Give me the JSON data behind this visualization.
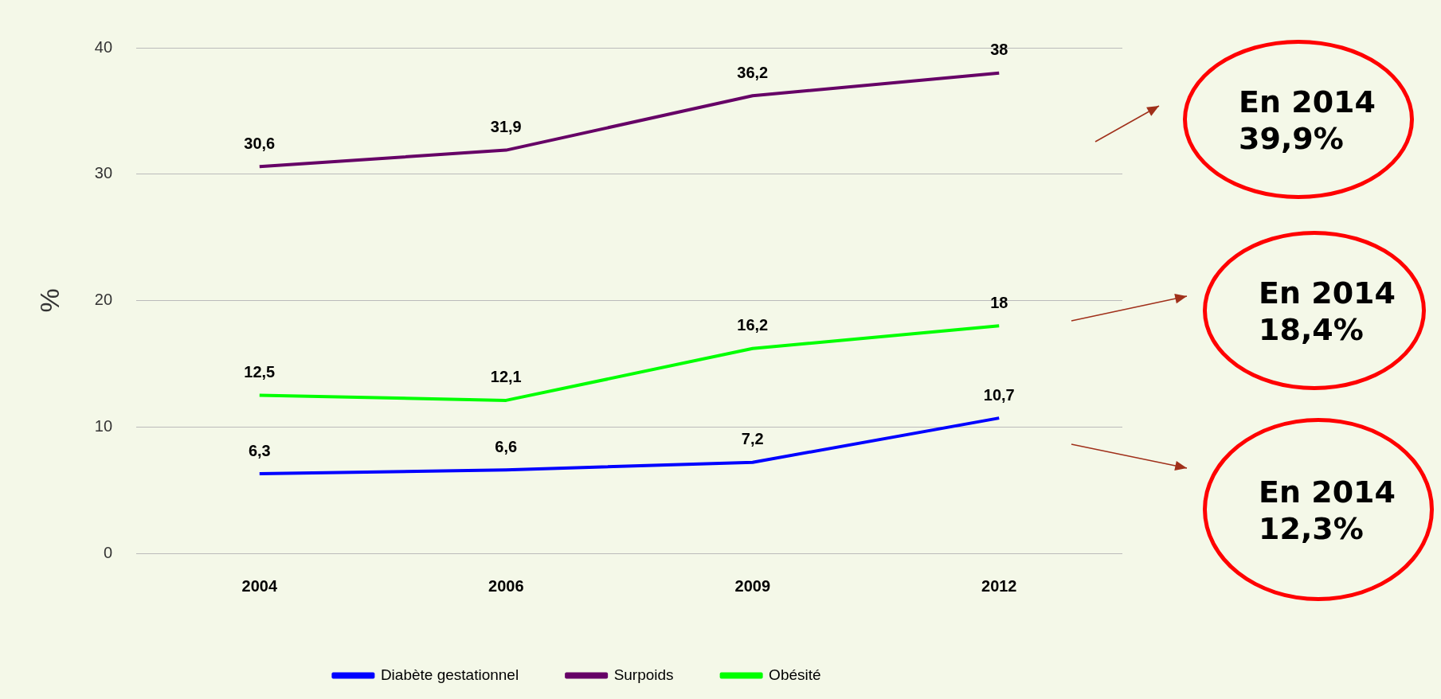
{
  "chart_data": {
    "type": "line",
    "ylabel": "%",
    "categories": [
      "2004",
      "2006",
      "2009",
      "2012"
    ],
    "series": [
      {
        "name": "Diabète gestationnel",
        "color": "#0000ff",
        "values": [
          6.3,
          6.6,
          7.2,
          10.7
        ],
        "value_labels": [
          "6,3",
          "6,6",
          "7,2",
          "10,7"
        ]
      },
      {
        "name": "Surpoids",
        "color": "#660066",
        "values": [
          30.6,
          31.9,
          36.2,
          38
        ],
        "value_labels": [
          "30,6",
          "31,9",
          "36,2",
          "38"
        ]
      },
      {
        "name": "Obésité",
        "color": "#00ff00",
        "values": [
          12.5,
          12.1,
          16.2,
          18
        ],
        "value_labels": [
          "12,5",
          "12,1",
          "16,2",
          "18"
        ]
      }
    ],
    "ylim": [
      0,
      40
    ],
    "yticks": [
      0,
      10,
      20,
      30,
      40
    ],
    "grid": "y",
    "legend": "bottom",
    "marker": "none",
    "line_style": "solid",
    "annotations": [
      "En 2014\n39,9%",
      "En 2014\n18,4%",
      "En 2014\n12,3%"
    ]
  }
}
